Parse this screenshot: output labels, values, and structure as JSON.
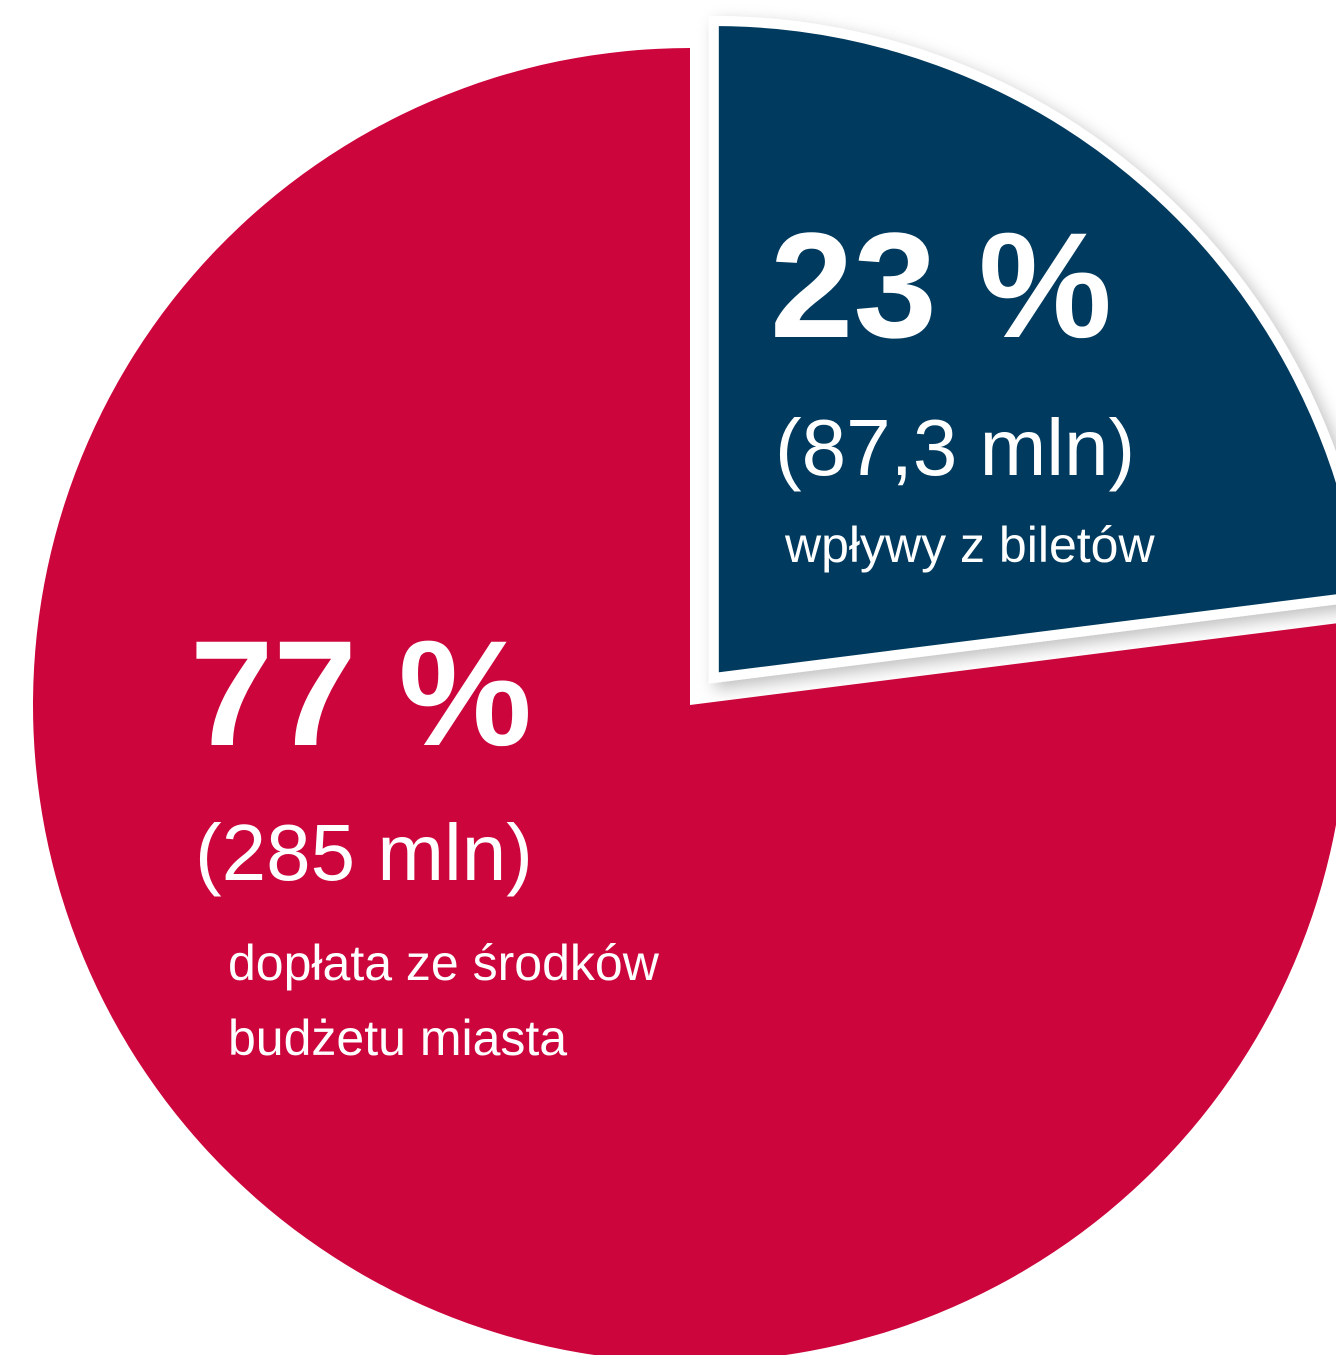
{
  "chart_data": {
    "type": "pie",
    "categories": [
      [
        "wpływy z biletów"
      ],
      [
        "dopłata ze środków",
        "budżetu miasta"
      ]
    ],
    "values": [
      23,
      77
    ],
    "value_labels": [
      "23 %",
      "77 %"
    ],
    "amounts": [
      "(87,3 mln)",
      "(285 mln)"
    ],
    "colors": [
      "#033a5e",
      "#cc063c"
    ],
    "exploded": [
      true,
      false
    ]
  }
}
